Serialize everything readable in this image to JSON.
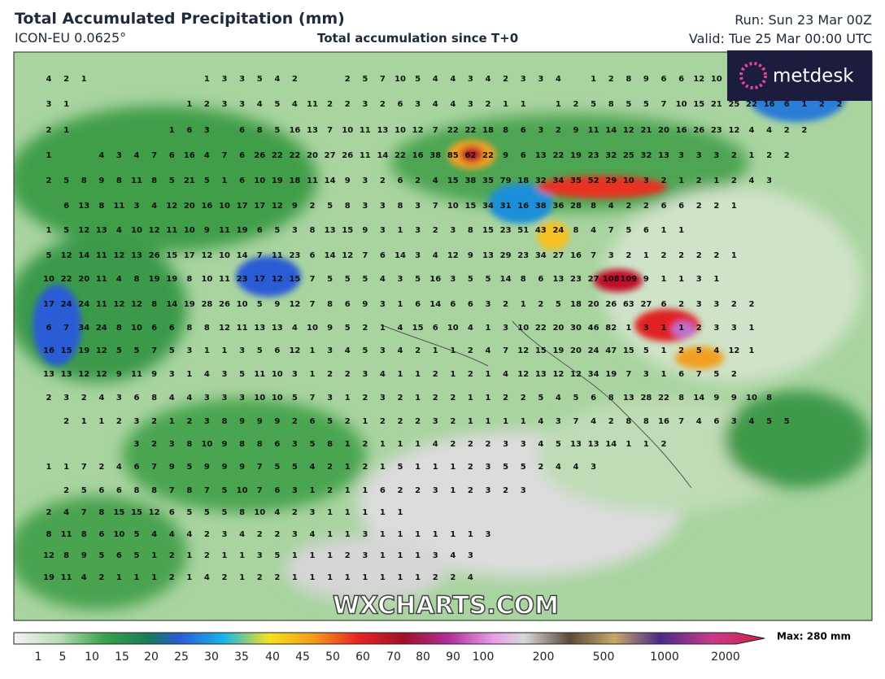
{
  "header": {
    "title": "Total Accumulated Precipitation (mm)",
    "model": "ICON-EU 0.0625°",
    "subtitle": "Total accumulation since T+0",
    "run": "Run: Sun 23 Mar 00Z",
    "valid": "Valid: Tue 25 Mar 00:00 UTC"
  },
  "logo": "metdesk",
  "watermark": "WXCHARTS.COM",
  "legend": {
    "ticks": [
      1,
      5,
      10,
      15,
      20,
      25,
      30,
      35,
      40,
      45,
      50,
      60,
      70,
      80,
      90,
      100,
      200,
      500,
      1000,
      2000
    ],
    "max_label": "Max: 280 mm"
  },
  "map": {
    "grid_values": [
      [
        4,
        2,
        1,
        null,
        null,
        null,
        null,
        null,
        null,
        1,
        3,
        3,
        5,
        4,
        2,
        null,
        null,
        2,
        5,
        7,
        10,
        5,
        4,
        4,
        3,
        4,
        2,
        3,
        3,
        4,
        null,
        1,
        2,
        8,
        9,
        6,
        6,
        12,
        10,
        null,
        null,
        null,
        null,
        null,
        null,
        null
      ],
      [
        3,
        1,
        null,
        null,
        null,
        null,
        null,
        null,
        1,
        2,
        3,
        3,
        4,
        5,
        4,
        11,
        2,
        2,
        3,
        2,
        6,
        3,
        4,
        4,
        3,
        2,
        1,
        1,
        null,
        1,
        2,
        5,
        8,
        5,
        5,
        7,
        10,
        15,
        21,
        25,
        22,
        16,
        6,
        1,
        2,
        2
      ],
      [
        2,
        1,
        null,
        null,
        null,
        null,
        null,
        1,
        6,
        3,
        null,
        6,
        8,
        5,
        16,
        13,
        7,
        10,
        11,
        13,
        10,
        12,
        7,
        22,
        22,
        18,
        8,
        6,
        3,
        2,
        9,
        11,
        14,
        12,
        21,
        20,
        16,
        26,
        23,
        12,
        4,
        4,
        2,
        2,
        null,
        null
      ],
      [
        1,
        null,
        null,
        4,
        3,
        4,
        7,
        6,
        16,
        4,
        7,
        6,
        26,
        22,
        22,
        20,
        27,
        26,
        11,
        14,
        22,
        16,
        38,
        85,
        62,
        22,
        9,
        6,
        13,
        22,
        19,
        23,
        32,
        25,
        32,
        13,
        3,
        3,
        3,
        2,
        1,
        2,
        2,
        null,
        null,
        null
      ],
      [
        2,
        5,
        8,
        9,
        8,
        11,
        8,
        5,
        21,
        5,
        1,
        6,
        10,
        19,
        18,
        11,
        14,
        9,
        3,
        2,
        6,
        2,
        4,
        15,
        38,
        35,
        79,
        18,
        32,
        34,
        35,
        52,
        29,
        10,
        3,
        2,
        1,
        2,
        1,
        2,
        4,
        3,
        null,
        null,
        null,
        null
      ],
      [
        null,
        6,
        13,
        8,
        11,
        3,
        4,
        12,
        20,
        16,
        10,
        17,
        17,
        12,
        9,
        2,
        5,
        8,
        3,
        3,
        8,
        3,
        7,
        10,
        15,
        34,
        31,
        16,
        38,
        36,
        28,
        8,
        4,
        2,
        2,
        6,
        6,
        2,
        2,
        1,
        null,
        null,
        null,
        null,
        null,
        null
      ],
      [
        1,
        5,
        12,
        13,
        4,
        10,
        12,
        11,
        10,
        9,
        11,
        19,
        6,
        5,
        3,
        8,
        13,
        15,
        9,
        3,
        1,
        3,
        2,
        3,
        8,
        15,
        23,
        51,
        43,
        24,
        8,
        4,
        7,
        5,
        6,
        1,
        1,
        null,
        null,
        null,
        null,
        null,
        null,
        null,
        null,
        null
      ],
      [
        5,
        12,
        14,
        11,
        12,
        13,
        26,
        15,
        17,
        12,
        10,
        14,
        7,
        11,
        23,
        6,
        14,
        12,
        7,
        6,
        14,
        3,
        4,
        12,
        9,
        13,
        29,
        23,
        34,
        27,
        16,
        7,
        3,
        2,
        1,
        2,
        2,
        2,
        2,
        1,
        null,
        null,
        null,
        null,
        null,
        null
      ],
      [
        10,
        22,
        20,
        11,
        4,
        8,
        19,
        19,
        8,
        10,
        11,
        23,
        17,
        12,
        15,
        7,
        5,
        5,
        5,
        4,
        3,
        5,
        16,
        3,
        5,
        5,
        14,
        8,
        6,
        13,
        23,
        27,
        108,
        109,
        9,
        1,
        1,
        3,
        1,
        null,
        null,
        null,
        null,
        null,
        null,
        null
      ],
      [
        17,
        24,
        24,
        11,
        12,
        12,
        8,
        14,
        19,
        28,
        26,
        10,
        5,
        9,
        12,
        7,
        8,
        6,
        9,
        3,
        1,
        6,
        14,
        6,
        6,
        3,
        2,
        1,
        2,
        5,
        18,
        20,
        26,
        63,
        27,
        6,
        2,
        3,
        3,
        2,
        2,
        null,
        null,
        null,
        null,
        null
      ],
      [
        6,
        7,
        34,
        24,
        8,
        10,
        6,
        6,
        8,
        8,
        12,
        11,
        13,
        13,
        4,
        10,
        9,
        5,
        2,
        1,
        4,
        15,
        6,
        10,
        4,
        1,
        3,
        10,
        22,
        20,
        30,
        46,
        82,
        1,
        3,
        1,
        1,
        2,
        3,
        3,
        1,
        null,
        null,
        null,
        null,
        null
      ],
      [
        16,
        15,
        19,
        12,
        5,
        5,
        7,
        5,
        3,
        1,
        1,
        3,
        5,
        6,
        12,
        1,
        3,
        4,
        5,
        3,
        4,
        2,
        1,
        1,
        2,
        4,
        7,
        12,
        15,
        19,
        20,
        24,
        47,
        15,
        5,
        1,
        2,
        5,
        4,
        12,
        1,
        null,
        null,
        null,
        null,
        null
      ],
      [
        13,
        13,
        12,
        12,
        9,
        11,
        9,
        3,
        1,
        4,
        3,
        5,
        11,
        10,
        3,
        1,
        2,
        2,
        3,
        4,
        1,
        1,
        2,
        1,
        2,
        1,
        4,
        12,
        13,
        12,
        12,
        34,
        19,
        7,
        3,
        1,
        6,
        7,
        5,
        2,
        null,
        null,
        null,
        null,
        null,
        null
      ],
      [
        2,
        3,
        2,
        4,
        3,
        6,
        8,
        4,
        4,
        3,
        3,
        3,
        10,
        10,
        5,
        7,
        3,
        1,
        2,
        3,
        2,
        1,
        2,
        2,
        1,
        1,
        2,
        2,
        5,
        4,
        5,
        6,
        8,
        13,
        28,
        22,
        8,
        14,
        9,
        9,
        10,
        8,
        null,
        null,
        null,
        null
      ],
      [
        null,
        2,
        1,
        1,
        2,
        3,
        2,
        1,
        2,
        3,
        8,
        9,
        9,
        9,
        2,
        6,
        5,
        2,
        1,
        2,
        2,
        2,
        3,
        2,
        1,
        1,
        1,
        1,
        4,
        3,
        7,
        4,
        2,
        8,
        8,
        16,
        7,
        4,
        6,
        3,
        4,
        5,
        5,
        null,
        null,
        null
      ],
      [
        null,
        null,
        null,
        null,
        null,
        3,
        2,
        3,
        8,
        10,
        9,
        8,
        8,
        6,
        3,
        5,
        8,
        1,
        2,
        1,
        1,
        1,
        4,
        2,
        2,
        2,
        3,
        3,
        4,
        5,
        13,
        13,
        14,
        1,
        1,
        2,
        null,
        null,
        null,
        null,
        null,
        null,
        null,
        null,
        null,
        null
      ],
      [
        1,
        1,
        7,
        2,
        4,
        6,
        7,
        9,
        5,
        9,
        9,
        9,
        7,
        5,
        5,
        4,
        2,
        1,
        2,
        1,
        5,
        1,
        1,
        1,
        2,
        3,
        5,
        5,
        2,
        4,
        4,
        3,
        null,
        null,
        null,
        null,
        null,
        null,
        null,
        null,
        null,
        null,
        null,
        null,
        null,
        null
      ],
      [
        null,
        2,
        5,
        6,
        6,
        8,
        8,
        7,
        8,
        7,
        5,
        10,
        7,
        6,
        3,
        1,
        2,
        1,
        1,
        6,
        2,
        2,
        3,
        1,
        2,
        3,
        2,
        3,
        null,
        null,
        null,
        null,
        null,
        null,
        null,
        null,
        null,
        null,
        null,
        null,
        null,
        null,
        null,
        null,
        null,
        null
      ],
      [
        2,
        4,
        7,
        8,
        15,
        15,
        12,
        6,
        5,
        5,
        5,
        8,
        10,
        4,
        2,
        3,
        1,
        1,
        1,
        1,
        1,
        null,
        null,
        null,
        null,
        null,
        null,
        null,
        null,
        null,
        null,
        null,
        null,
        null,
        null,
        null,
        null,
        null,
        null,
        null,
        null,
        null,
        null,
        null,
        null,
        null
      ],
      [
        8,
        11,
        8,
        6,
        10,
        5,
        4,
        4,
        4,
        2,
        3,
        4,
        2,
        2,
        3,
        4,
        1,
        1,
        3,
        1,
        1,
        1,
        1,
        1,
        1,
        3,
        null,
        null,
        null,
        null,
        null,
        null,
        null,
        null,
        null,
        null,
        null,
        null,
        null,
        null,
        null,
        null,
        null,
        null,
        null,
        null
      ],
      [
        12,
        8,
        9,
        5,
        6,
        5,
        1,
        2,
        1,
        2,
        1,
        1,
        3,
        5,
        1,
        1,
        1,
        2,
        3,
        1,
        1,
        1,
        3,
        4,
        3,
        null,
        null,
        null,
        null,
        null,
        null,
        null,
        null,
        null,
        null,
        null,
        null,
        null,
        null,
        null,
        null,
        null,
        null,
        null,
        null,
        null
      ],
      [
        19,
        11,
        4,
        2,
        1,
        1,
        1,
        2,
        1,
        4,
        2,
        1,
        2,
        2,
        1,
        1,
        1,
        1,
        1,
        1,
        1,
        1,
        2,
        2,
        4,
        null,
        null,
        null,
        null,
        null,
        null,
        null,
        null,
        null,
        null,
        null,
        null,
        null,
        null,
        null,
        null,
        null,
        null,
        null,
        null,
        null
      ]
    ]
  }
}
